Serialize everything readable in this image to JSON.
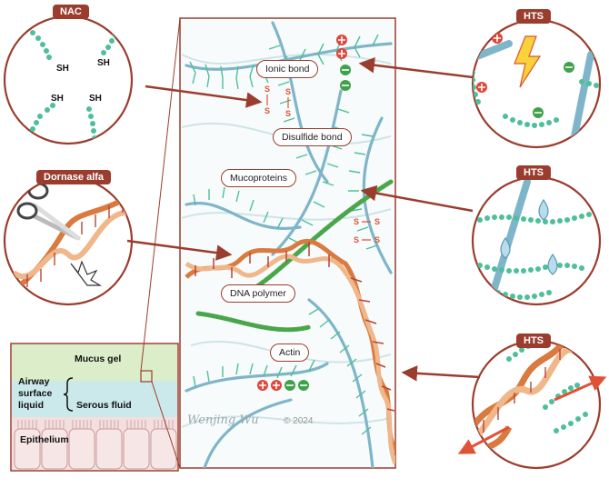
{
  "labels": {
    "nac": "NAC",
    "hts_top": "HTS",
    "hts_mid": "HTS",
    "hts_bottom": "HTS",
    "dornase": "Dornase alfa",
    "ionic_bond": "Ionic bond",
    "disulfide_bond": "Disulfide bond",
    "mucoproteins": "Mucoproteins",
    "dna_polymer": "DNA polymer",
    "actin": "Actin",
    "mucus_gel": "Mucus gel",
    "airway_surface_liquid": "Airway surface liquid",
    "serous_fluid": "Serous fluid",
    "epithelium": "Epithelium",
    "copyright": "© 2024",
    "sh": [
      "SH",
      "SH",
      "SH",
      "SH"
    ],
    "s_letters": [
      "S",
      "S",
      "S",
      "S"
    ],
    "s_pair_a": [
      "S",
      "S"
    ],
    "s_pair_b": [
      "S",
      "S"
    ]
  },
  "signature": "Wenjing Wu",
  "colors": {
    "accent": "#9b3d2e",
    "fiber": "#7fb5c9",
    "bead": "#4fbf9a",
    "actin": "#4aa64a",
    "dna": "#d97a3f",
    "positive": "#e0463a",
    "negative": "#3fa24b"
  }
}
